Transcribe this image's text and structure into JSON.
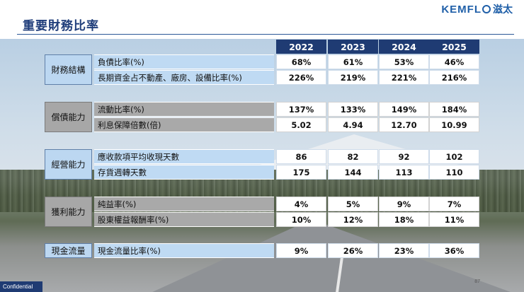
{
  "page": {
    "title": "重要財務比率",
    "logo_latin": "KEMFL",
    "logo_cjk": "滋太",
    "confidential": "Confidential",
    "page_number": "87"
  },
  "table": {
    "years": [
      "2022",
      "2023",
      "2024",
      "2025"
    ],
    "groups": [
      {
        "label": "財務結構",
        "style": "blue",
        "rows": [
          {
            "label": "負債比率(%)",
            "values": [
              "68%",
              "61%",
              "53%",
              "46%"
            ]
          },
          {
            "label": "長期資金占不動產、廠房、設備比率(%)",
            "values": [
              "226%",
              "219%",
              "221%",
              "216%"
            ]
          }
        ]
      },
      {
        "label": "償債能力",
        "style": "gray",
        "rows": [
          {
            "label": "流動比率(%)",
            "values": [
              "137%",
              "133%",
              "149%",
              "184%"
            ]
          },
          {
            "label": "利息保障倍數(倍)",
            "values": [
              "5.02",
              "4.94",
              "12.70",
              "10.99"
            ]
          }
        ]
      },
      {
        "label": "經營能力",
        "style": "blue",
        "rows": [
          {
            "label": "應收款項平均收現天數",
            "values": [
              "86",
              "82",
              "92",
              "102"
            ]
          },
          {
            "label": "存貨週轉天數",
            "values": [
              "175",
              "144",
              "113",
              "110"
            ]
          }
        ]
      },
      {
        "label": "獲利能力",
        "style": "gray",
        "rows": [
          {
            "label": "純益率(%)",
            "values": [
              "4%",
              "5%",
              "9%",
              "7%"
            ]
          },
          {
            "label": "股東權益報酬率(%)",
            "values": [
              "10%",
              "12%",
              "18%",
              "11%"
            ]
          }
        ]
      },
      {
        "label": "現金流量",
        "style": "blue",
        "rows": [
          {
            "label": "現金流量比率(%)",
            "values": [
              "9%",
              "26%",
              "23%",
              "36%"
            ]
          }
        ]
      }
    ]
  }
}
